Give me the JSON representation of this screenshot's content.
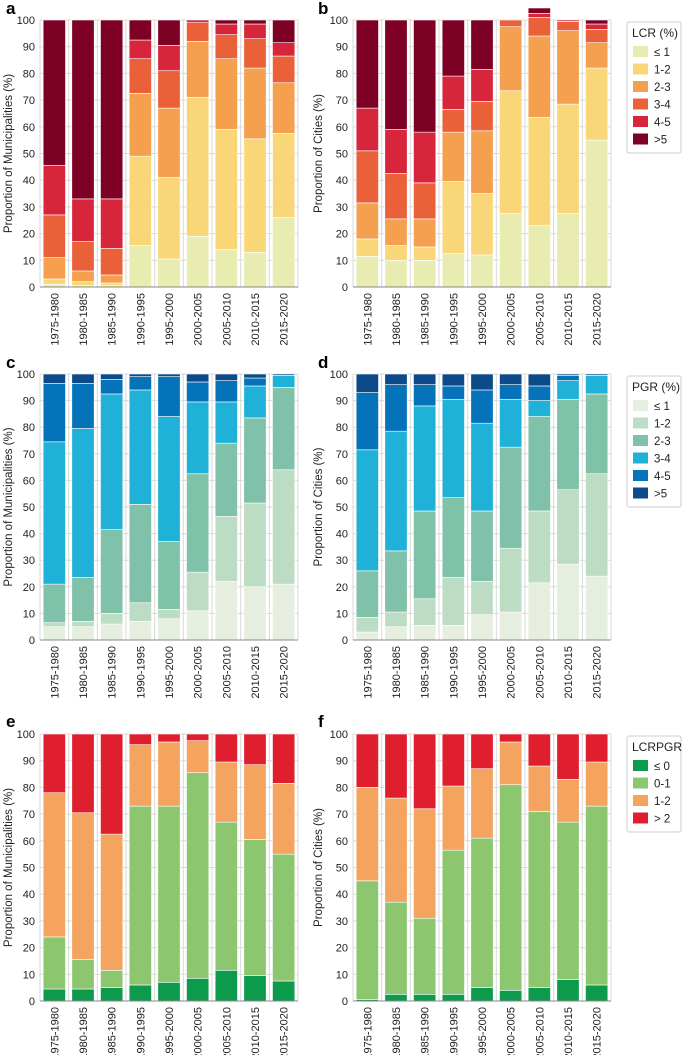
{
  "categories": [
    "1975-1980",
    "1980-1985",
    "1985-1990",
    "1990-1995",
    "1995-2000",
    "2000-2005",
    "2005-2010",
    "2010-2015",
    "2015-2020"
  ],
  "chart_data": [
    {
      "panel": "a",
      "type": "bar",
      "stacked": true,
      "ylabel": "Proportion of Municipalities (%)",
      "ylim": [
        0,
        100
      ],
      "yticks": [
        0,
        10,
        20,
        30,
        40,
        50,
        60,
        70,
        80,
        90,
        100
      ],
      "grid": true,
      "legend_group": "LCR",
      "series": [
        {
          "name": "≤ 1",
          "values": [
            1,
            0.5,
            0.5,
            15.5,
            10.5,
            19,
            14,
            13,
            26
          ]
        },
        {
          "name": "1-2",
          "values": [
            2,
            1.5,
            1,
            33.5,
            30.5,
            52,
            45,
            42.5,
            31.5
          ]
        },
        {
          "name": "2-3",
          "values": [
            8,
            4,
            3,
            23.5,
            26,
            21,
            26.5,
            26.5,
            19
          ]
        },
        {
          "name": "3-4",
          "values": [
            16,
            11,
            10,
            13,
            14,
            7,
            9,
            11,
            10
          ]
        },
        {
          "name": "4-5",
          "values": [
            18.5,
            16,
            18.5,
            7,
            9.5,
            1,
            4,
            5.5,
            5
          ]
        },
        {
          "name": ">5",
          "values": [
            54.5,
            67,
            67,
            7.5,
            9.5,
            0,
            1.5,
            1.5,
            8.5
          ]
        }
      ]
    },
    {
      "panel": "b",
      "type": "bar",
      "stacked": true,
      "ylabel": "Proportion of Cities (%)",
      "ylim": [
        0,
        100
      ],
      "yticks": [
        0,
        10,
        20,
        30,
        40,
        50,
        60,
        70,
        80,
        90,
        100
      ],
      "grid": true,
      "legend_group": "LCR",
      "series": [
        {
          "name": "≤ 1",
          "values": [
            11.5,
            10,
            10,
            12.5,
            12,
            27.5,
            23,
            27.5,
            55
          ]
        },
        {
          "name": "1-2",
          "values": [
            6.5,
            5.5,
            5,
            27,
            23,
            46,
            40.5,
            41,
            27
          ]
        },
        {
          "name": "2-3",
          "values": [
            13.5,
            10,
            10.5,
            18.5,
            23.5,
            24,
            30.5,
            27.5,
            9.5
          ]
        },
        {
          "name": "3-4",
          "values": [
            19.5,
            17,
            13.5,
            8.5,
            11,
            2.5,
            7,
            3.5,
            5
          ]
        },
        {
          "name": "4-5",
          "values": [
            16,
            16.5,
            19,
            12.5,
            12,
            0,
            1.5,
            0.5,
            2
          ]
        },
        {
          "name": ">5",
          "values": [
            33,
            41,
            42,
            21,
            18.5,
            0,
            2,
            0,
            1.5
          ]
        }
      ]
    },
    {
      "panel": "c",
      "type": "bar",
      "stacked": true,
      "ylabel": "Proportion of Municipalities (%)",
      "ylim": [
        0,
        100
      ],
      "yticks": [
        0,
        10,
        20,
        30,
        40,
        50,
        60,
        70,
        80,
        90,
        100
      ],
      "grid": true,
      "legend_group": "PGR",
      "series": [
        {
          "name": "≤ 1",
          "values": [
            5,
            5,
            6,
            7,
            8,
            11,
            22,
            20,
            21
          ]
        },
        {
          "name": "1-2",
          "values": [
            1.5,
            2,
            4,
            7,
            3.5,
            14.5,
            24.5,
            31.5,
            43
          ]
        },
        {
          "name": "2-3",
          "values": [
            14.5,
            16.5,
            31.5,
            37,
            25.5,
            37,
            27.5,
            32,
            31
          ]
        },
        {
          "name": "3-4",
          "values": [
            53.5,
            56,
            51,
            43,
            47,
            27,
            15.5,
            12,
            4.5
          ]
        },
        {
          "name": "4-5",
          "values": [
            22,
            17,
            5.5,
            5,
            15,
            7.5,
            8,
            3,
            0
          ]
        },
        {
          "name": ">5",
          "values": [
            3.5,
            3.5,
            2,
            1,
            1,
            3,
            2.5,
            1.5,
            0.5
          ]
        }
      ]
    },
    {
      "panel": "d",
      "type": "bar",
      "stacked": true,
      "ylabel": "Proportion of Cities (%)",
      "ylim": [
        0,
        100
      ],
      "yticks": [
        0,
        10,
        20,
        30,
        40,
        50,
        60,
        70,
        80,
        90,
        100
      ],
      "grid": true,
      "legend_group": "PGR",
      "series": [
        {
          "name": "≤ 1",
          "values": [
            3,
            5,
            5.5,
            5.5,
            9.5,
            10.5,
            21.5,
            28.5,
            24
          ]
        },
        {
          "name": "1-2",
          "values": [
            5.5,
            5.5,
            10,
            18,
            12.5,
            24,
            27,
            28,
            38.5
          ]
        },
        {
          "name": "2-3",
          "values": [
            17.5,
            23,
            33,
            30,
            26.5,
            38,
            35.5,
            34,
            30
          ]
        },
        {
          "name": "3-4",
          "values": [
            45.5,
            45,
            39.5,
            37,
            33,
            18,
            6,
            7,
            7
          ]
        },
        {
          "name": "4-5",
          "values": [
            21.5,
            17.5,
            8,
            5,
            12.5,
            5.5,
            5.5,
            2,
            0
          ]
        },
        {
          "name": ">5",
          "values": [
            7,
            4,
            4,
            4.5,
            6,
            4,
            4.5,
            0.5,
            0.5
          ]
        }
      ]
    },
    {
      "panel": "e",
      "type": "bar",
      "stacked": true,
      "ylabel": "Proportion of Municipalities (%)",
      "ylim": [
        0,
        100
      ],
      "yticks": [
        0,
        10,
        20,
        30,
        40,
        50,
        60,
        70,
        80,
        90,
        100
      ],
      "grid": true,
      "legend_group": "LCRPGR",
      "series": [
        {
          "name": "≤ 0",
          "values": [
            4.5,
            4.5,
            5,
            6,
            7,
            8.5,
            11.5,
            9.5,
            7.5
          ]
        },
        {
          "name": "0-1",
          "values": [
            19.5,
            11,
            6.5,
            67,
            66,
            77,
            55.5,
            51,
            47.5
          ]
        },
        {
          "name": "1-2",
          "values": [
            54,
            55,
            51,
            23,
            24,
            12,
            22.5,
            28,
            26.5
          ]
        },
        {
          "name": "> 2",
          "values": [
            22,
            29.5,
            37.5,
            4,
            3,
            2.5,
            10.5,
            11.5,
            18.5
          ]
        }
      ]
    },
    {
      "panel": "f",
      "type": "bar",
      "stacked": true,
      "ylabel": "Proportion of Cities (%)",
      "ylim": [
        0,
        100
      ],
      "yticks": [
        0,
        10,
        20,
        30,
        40,
        50,
        60,
        70,
        80,
        90,
        100
      ],
      "grid": true,
      "legend_group": "LCRPGR",
      "series": [
        {
          "name": "≤ 0",
          "values": [
            0.5,
            2.5,
            2.5,
            2.5,
            5,
            4,
            5,
            8,
            6
          ]
        },
        {
          "name": "0-1",
          "values": [
            44.5,
            34.5,
            28.5,
            54,
            56,
            77,
            66,
            59,
            67
          ]
        },
        {
          "name": "1-2",
          "values": [
            35,
            39,
            41,
            24,
            26,
            16,
            17,
            16,
            16.5
          ]
        },
        {
          "name": "> 2",
          "values": [
            20,
            24,
            28,
            19.5,
            13,
            3,
            12,
            17,
            10.5
          ]
        }
      ]
    }
  ],
  "legends": {
    "LCR": {
      "title": "LCR (%)",
      "items": [
        "≤ 1",
        "1-2",
        "2-3",
        "3-4",
        "4-5",
        ">5"
      ],
      "colors": [
        "#e8ecb0",
        "#f9d779",
        "#f4a04f",
        "#ea6038",
        "#d7263c",
        "#7d0124"
      ]
    },
    "PGR": {
      "title": "PGR (%)",
      "items": [
        "≤ 1",
        "1-2",
        "2-3",
        "3-4",
        "4-5",
        ">5"
      ],
      "colors": [
        "#e6efdf",
        "#bcdcc3",
        "#7fc1a9",
        "#1fb1d7",
        "#0573ba",
        "#0d4a8a"
      ]
    },
    "LCRPGR": {
      "title": "LCRPGR",
      "items": [
        "≤ 0",
        "0-1",
        "1-2",
        "> 2"
      ],
      "colors": [
        "#0c9a4c",
        "#8cc76f",
        "#f4a45e",
        "#df1f2e"
      ]
    }
  }
}
